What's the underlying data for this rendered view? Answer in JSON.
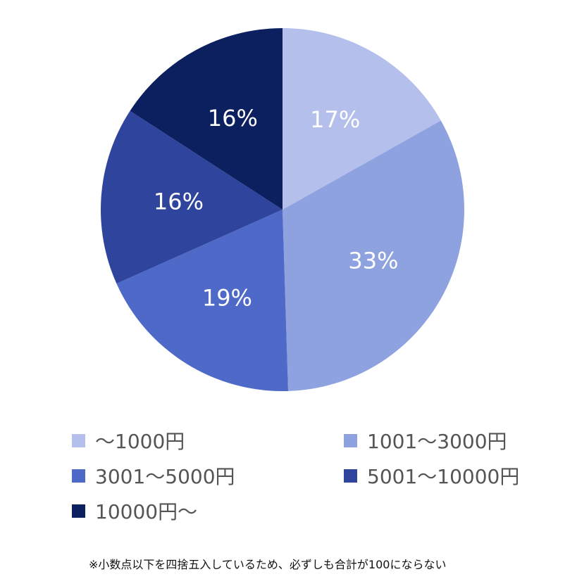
{
  "chart_data": {
    "type": "pie",
    "title": "",
    "categories": [
      "～1000円",
      "1001～3000円",
      "3001～5000円",
      "5001～10000円",
      "10000円～"
    ],
    "values": [
      17,
      33,
      19,
      16,
      16
    ],
    "value_labels": [
      "17%",
      "33%",
      "19%",
      "16%",
      "16%"
    ],
    "colors": [
      "#b4bfec",
      "#8fa2e0",
      "#4f69c8",
      "#2f459d",
      "#0c1f5e"
    ],
    "start_angle_deg": 0,
    "direction": "clockwise",
    "legend_position": "bottom"
  },
  "footnote": "※小数点以下を四捨五入しているため、必ずしも合計が100にならない"
}
